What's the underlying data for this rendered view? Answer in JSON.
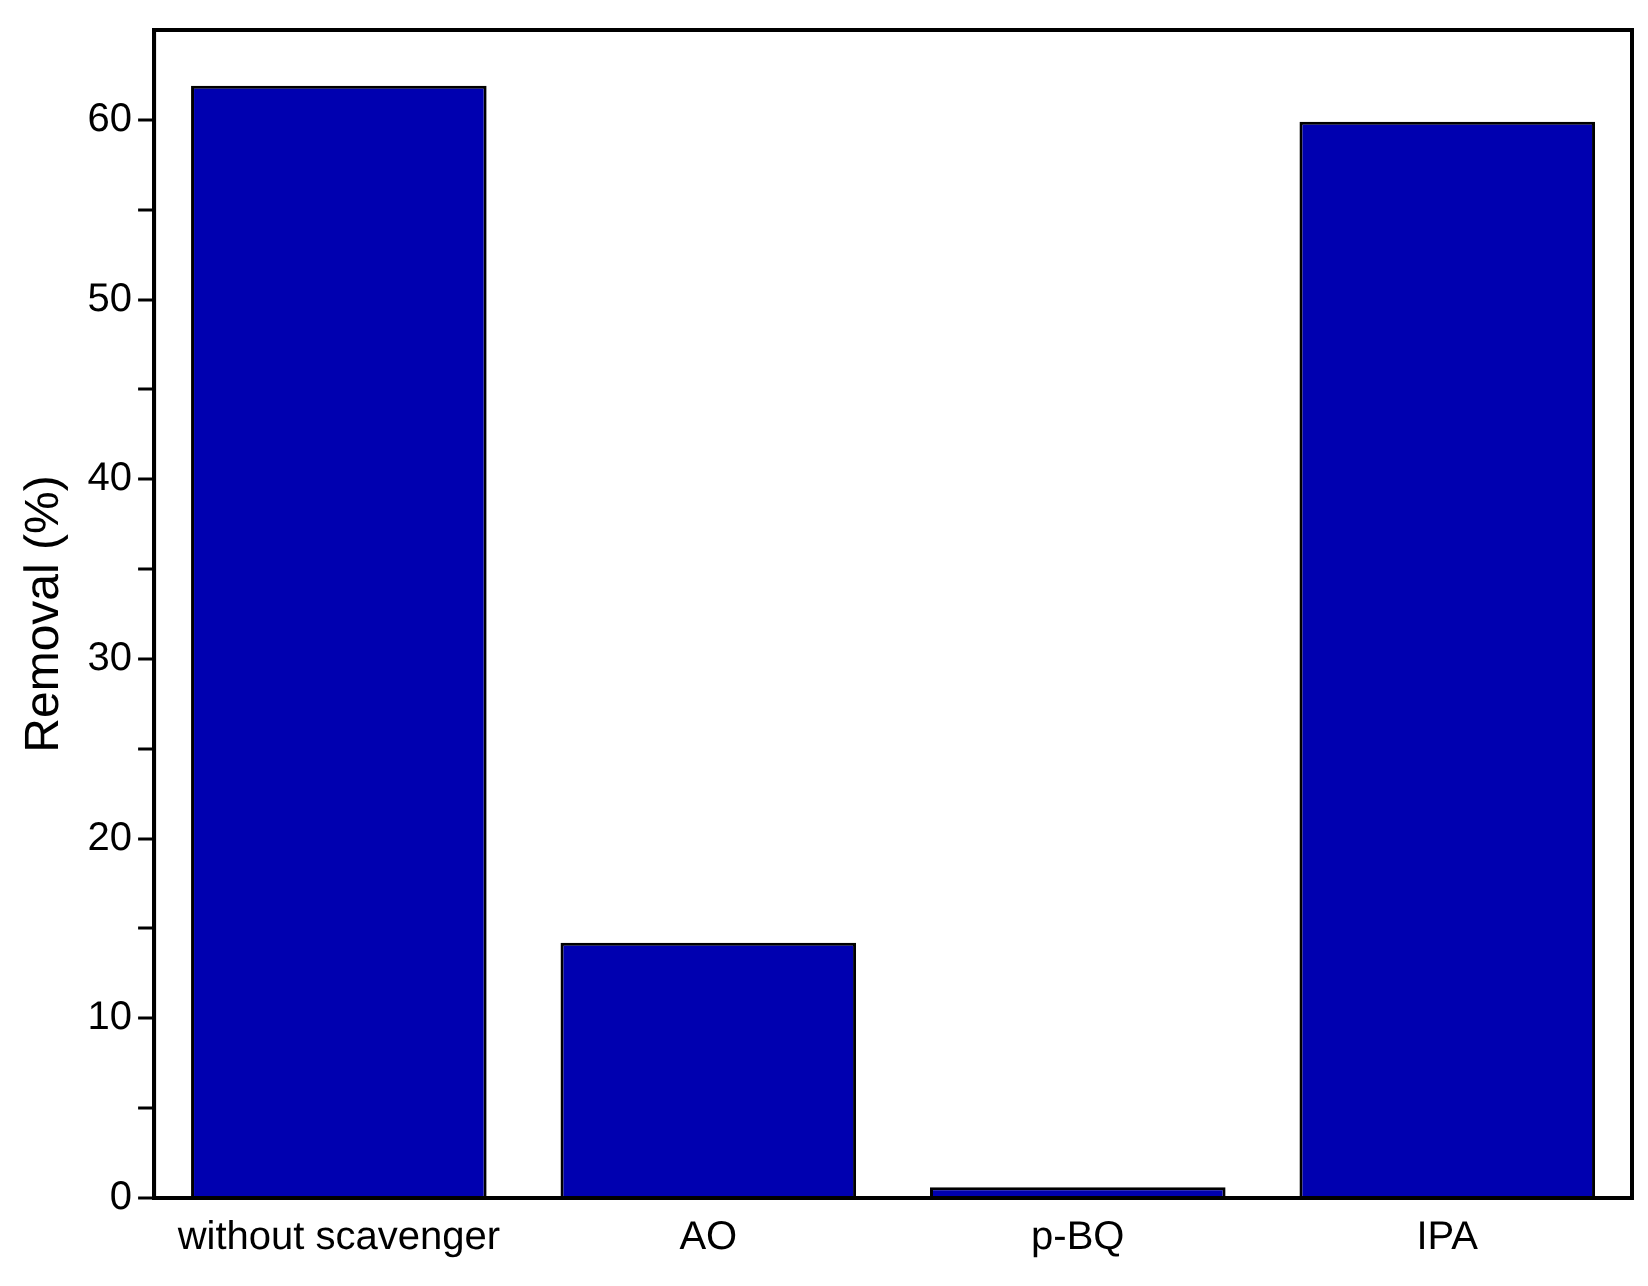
{
  "chart_data": {
    "type": "bar",
    "ylabel": "Removal (%)",
    "categories": [
      "without scavenger",
      "AO",
      "p-BQ",
      "IPA"
    ],
    "values": [
      61.9,
      14.2,
      0.6,
      59.9
    ],
    "color": "#0000b0",
    "ylim": [
      0,
      65
    ],
    "yticks": [
      0,
      {
        "value": 5,
        "label": null
      },
      10,
      {
        "value": 15,
        "label": null
      },
      20,
      {
        "value": 25,
        "label": null
      },
      30,
      {
        "value": 35,
        "label": null
      },
      40,
      {
        "value": 45,
        "label": null
      },
      50,
      {
        "value": 55,
        "label": null
      },
      60
    ],
    "grid": false
  }
}
